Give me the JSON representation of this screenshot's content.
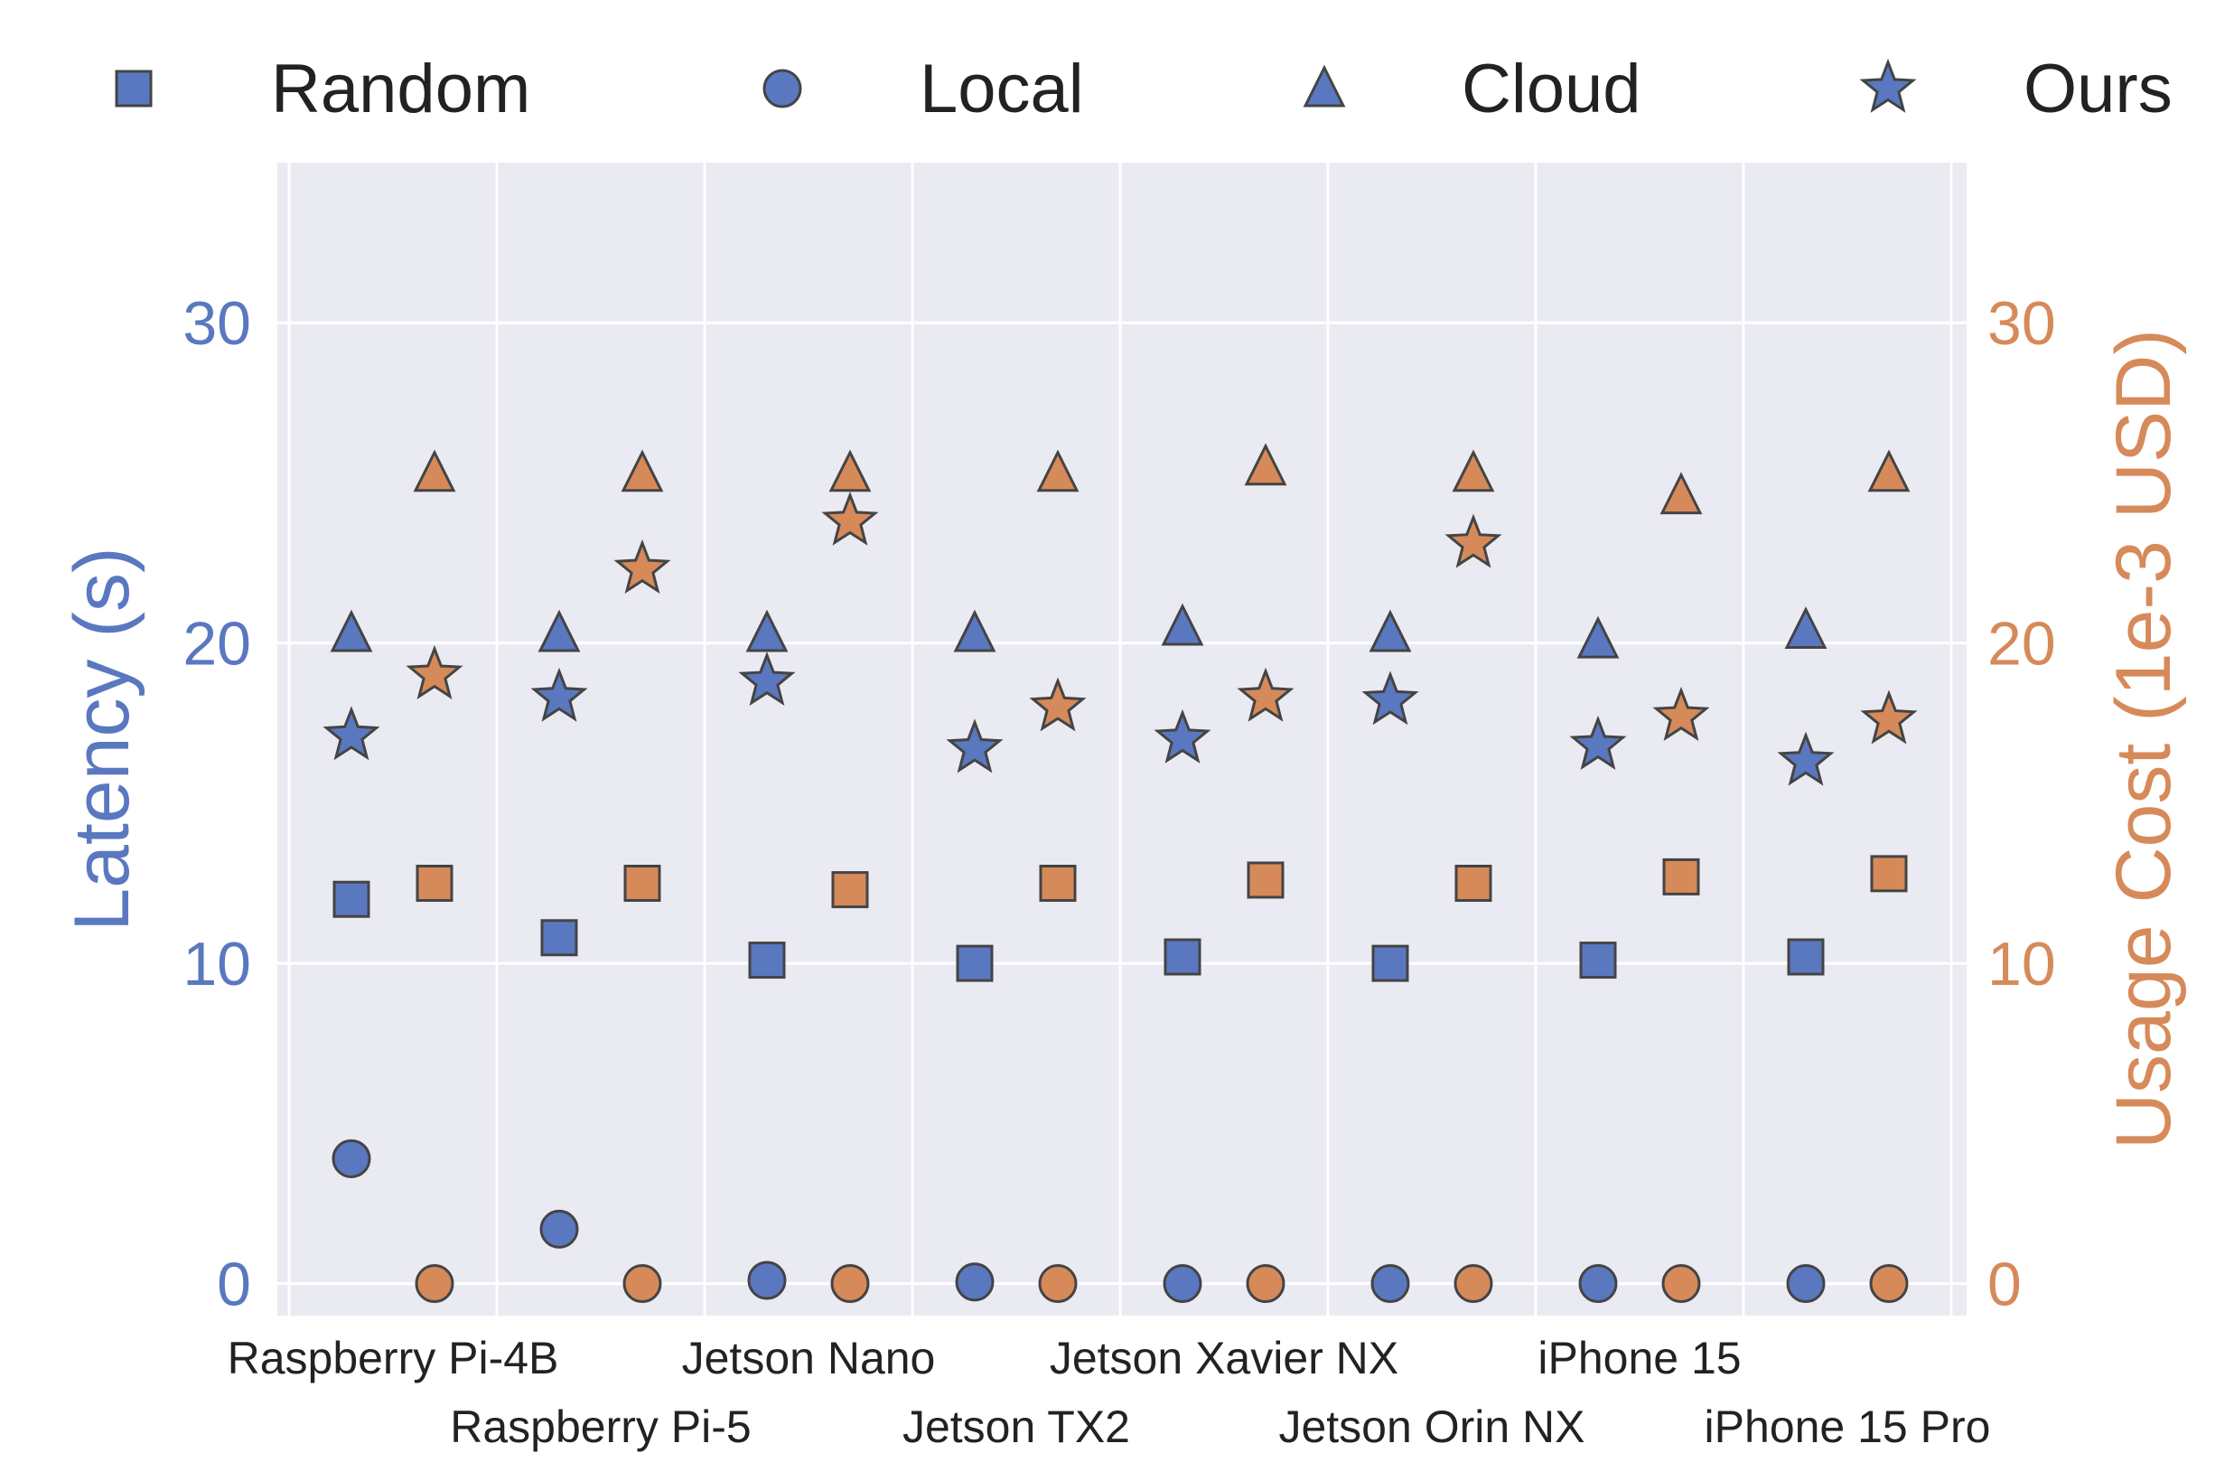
{
  "chart_data": {
    "type": "scatter",
    "categories": [
      "Raspberry Pi-4B",
      "Raspberry Pi-5",
      "Jetson Nano",
      "Jetson TX2",
      "Jetson Xavier NX",
      "Jetson Orin NX",
      "iPhone 15",
      "iPhone 15 Pro"
    ],
    "left_axis": {
      "label": "Latency (s)",
      "ylim": [
        -1,
        35
      ],
      "ticks": [
        0,
        10,
        20,
        30
      ],
      "color": "#5a78c0"
    },
    "right_axis": {
      "label": "Usage Cost (1e-3 USD)",
      "ylim": [
        -1,
        35
      ],
      "ticks": [
        0,
        10,
        20,
        30
      ],
      "color": "#d68a5a"
    },
    "legend": {
      "placement": "top",
      "entries": [
        {
          "name": "Random",
          "marker": "square"
        },
        {
          "name": "Local",
          "marker": "circle"
        },
        {
          "name": "Cloud",
          "marker": "triangle"
        },
        {
          "name": "Ours",
          "marker": "star"
        }
      ]
    },
    "latency_series": [
      {
        "name": "Random",
        "marker": "square",
        "values": [
          12.0,
          10.8,
          10.1,
          10.0,
          10.2,
          10.0,
          10.1,
          10.2
        ]
      },
      {
        "name": "Local",
        "marker": "circle",
        "values": [
          3.9,
          1.7,
          0.1,
          0.05,
          0.0,
          0.0,
          0.0,
          0.0
        ]
      },
      {
        "name": "Cloud",
        "marker": "triangle",
        "values": [
          20.3,
          20.3,
          20.3,
          20.3,
          20.5,
          20.3,
          20.1,
          20.4
        ]
      },
      {
        "name": "Ours",
        "marker": "star",
        "values": [
          17.1,
          18.3,
          18.8,
          16.7,
          17.0,
          18.2,
          16.8,
          16.3
        ]
      }
    ],
    "cost_series": [
      {
        "name": "Random",
        "marker": "square",
        "values": [
          12.5,
          12.5,
          12.3,
          12.5,
          12.6,
          12.5,
          12.7,
          12.8
        ]
      },
      {
        "name": "Local",
        "marker": "circle",
        "values": [
          0.0,
          0.0,
          0.0,
          0.0,
          0.0,
          0.0,
          0.0,
          0.0
        ]
      },
      {
        "name": "Cloud",
        "marker": "triangle",
        "values": [
          25.3,
          25.3,
          25.3,
          25.3,
          25.5,
          25.3,
          24.6,
          25.3
        ]
      },
      {
        "name": "Ours",
        "marker": "star",
        "values": [
          19.0,
          22.3,
          23.8,
          18.0,
          18.3,
          23.1,
          17.7,
          17.6
        ]
      }
    ],
    "grid": true,
    "colors": {
      "latency": "#5a78c0",
      "cost": "#d68a5a",
      "background": "#eaeaf2",
      "edge": "#444444"
    }
  }
}
